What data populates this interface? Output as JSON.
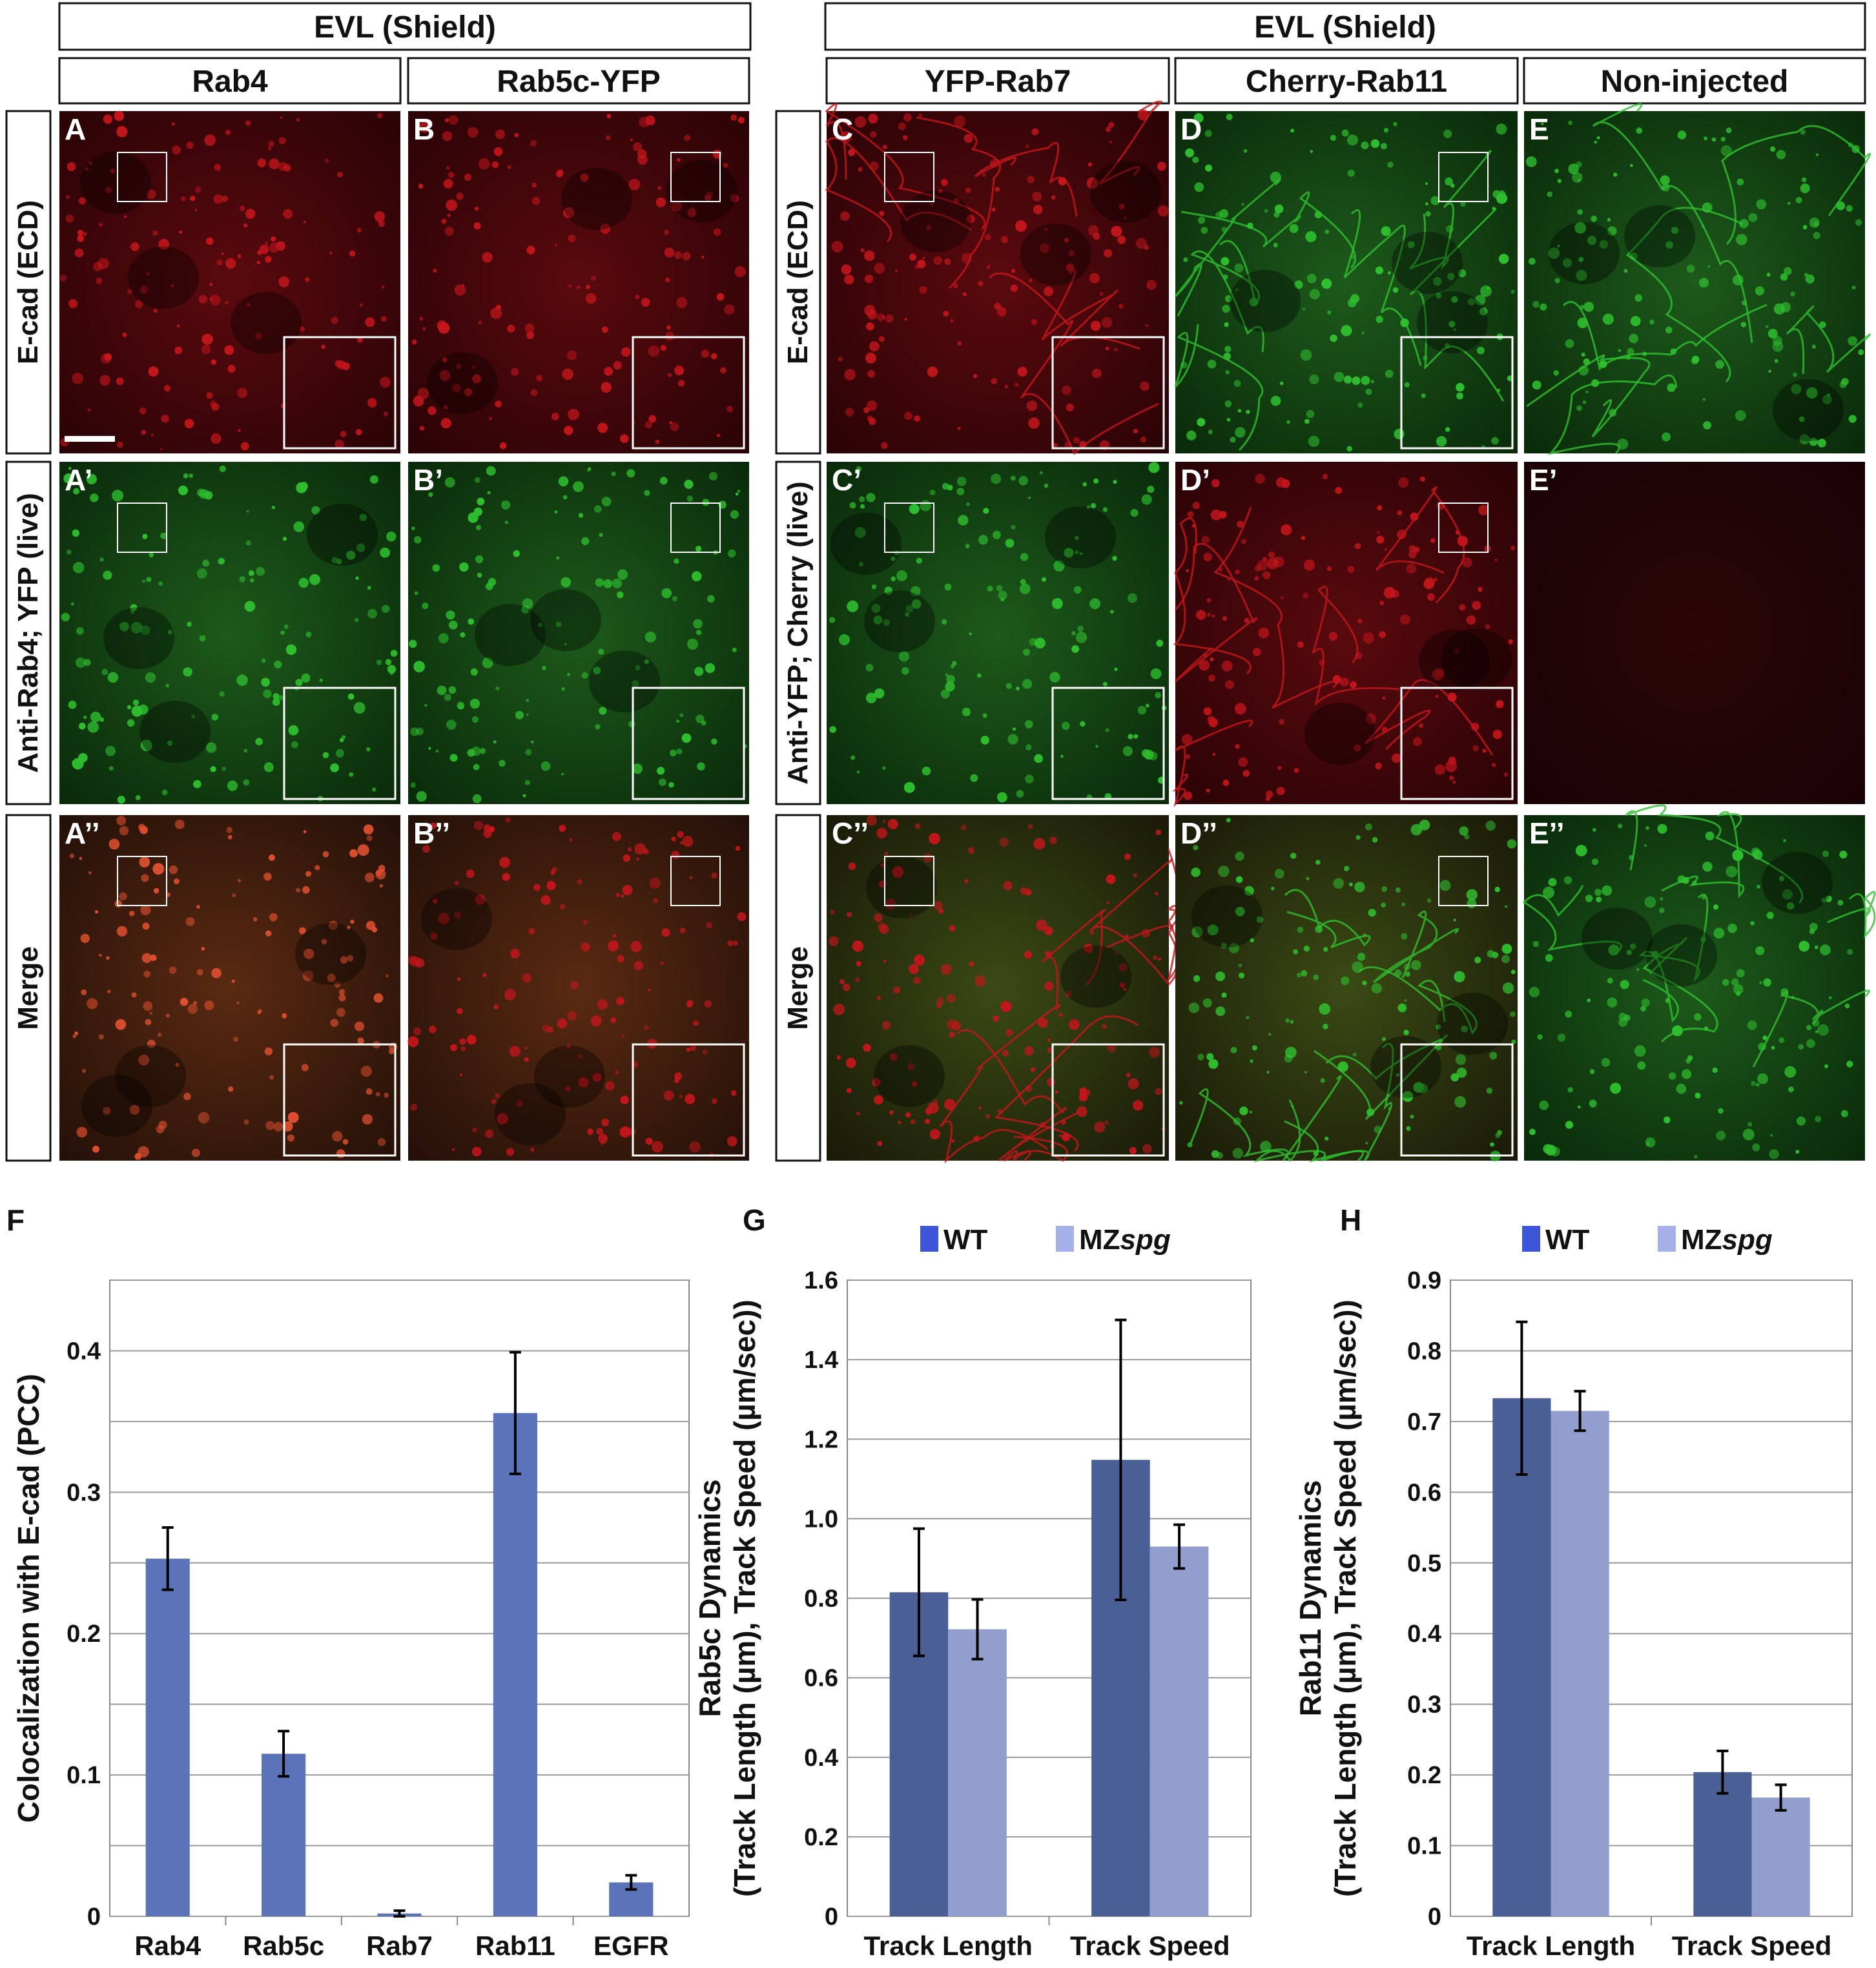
{
  "figure_headers": {
    "left_group": "EVL (Shield)",
    "right_group": "EVL (Shield)"
  },
  "columns": [
    "Rab4",
    "Rab5c-YFP",
    "YFP-Rab7",
    "Cherry-Rab11",
    "Non-injected"
  ],
  "row_labels_left": [
    "E-cad (ECD)",
    "Anti-Rab4; YFP (live)",
    "Merge"
  ],
  "row_labels_right": [
    "E-cad (ECD)",
    "Anti-YFP; Cherry (live)",
    "Merge"
  ],
  "panel_letters": {
    "row1": [
      "A",
      "B",
      "C",
      "D",
      "E"
    ],
    "row2": [
      "A’",
      "B’",
      "C’",
      "D’",
      "E’"
    ],
    "row3": [
      "A’’",
      "B’’",
      "C’’",
      "D’’",
      "E’’"
    ]
  },
  "micrograph_colors": {
    "red": "#c4161c",
    "green": "#2fbf2f",
    "dark_red": "#3a0508",
    "dark_green": "#0c3a0c"
  },
  "chart_letters": [
    "F",
    "G",
    "H"
  ],
  "chart_data": [
    {
      "type": "bar",
      "panel": "F",
      "categories": [
        "Rab4",
        "Rab5c",
        "Rab7",
        "Rab11",
        "EGFR"
      ],
      "values": [
        0.253,
        0.115,
        0.002,
        0.356,
        0.024
      ],
      "errors": [
        0.022,
        0.016,
        0.002,
        0.043,
        0.005
      ],
      "ylabel": "Colocalization with E-cad (PCC)",
      "ylim": [
        0,
        0.45
      ],
      "yticks": [
        0,
        0.1,
        0.2,
        0.3,
        0.4
      ],
      "ytick_labels": [
        "0",
        "0.1",
        "0.2",
        "0.3",
        "0.4"
      ],
      "grid": true,
      "colors": [
        "#5b73b8"
      ]
    },
    {
      "type": "bar",
      "panel": "G",
      "categories": [
        "Track Length",
        "Track Speed"
      ],
      "series": [
        {
          "name": "WT",
          "values": [
            0.815,
            1.148
          ],
          "errors": [
            0.16,
            0.352
          ]
        },
        {
          "name": "MZspg",
          "values": [
            0.722,
            0.93
          ],
          "errors": [
            0.075,
            0.055
          ]
        }
      ],
      "ylabel_line1": "Rab5c Dynamics",
      "ylabel_line2": "(Track Length (µm), Track Speed (µm/sec))",
      "ylim": [
        0,
        1.6
      ],
      "yticks": [
        0,
        0.2,
        0.4,
        0.6,
        0.8,
        1.0,
        1.2,
        1.4,
        1.6
      ],
      "ytick_labels": [
        "0",
        "0.2",
        "0.4",
        "0.6",
        "0.8",
        "1.0",
        "1.2",
        "1.4",
        "1.6"
      ],
      "grid": true,
      "legend_placement": "top",
      "legend_prefix_2": "MZ",
      "legend_italic_2": "spg",
      "colors": [
        "#4a5f96",
        "#929ece"
      ],
      "legend_colors": [
        "#3c55d9",
        "#a6b0e8"
      ]
    },
    {
      "type": "bar",
      "panel": "H",
      "categories": [
        "Track Length",
        "Track Speed"
      ],
      "series": [
        {
          "name": "WT",
          "values": [
            0.733,
            0.204
          ],
          "errors": [
            0.108,
            0.03
          ]
        },
        {
          "name": "MZspg",
          "values": [
            0.715,
            0.168
          ],
          "errors": [
            0.028,
            0.018
          ]
        }
      ],
      "ylabel_line1": "Rab11 Dynamics",
      "ylabel_line2": "(Track Length (µm), Track Speed (µm/sec))",
      "ylim": [
        0,
        0.9
      ],
      "yticks": [
        0,
        0.1,
        0.2,
        0.3,
        0.4,
        0.5,
        0.6,
        0.7,
        0.8,
        0.9
      ],
      "ytick_labels": [
        "0",
        "0.1",
        "0.2",
        "0.3",
        "0.4",
        "0.5",
        "0.6",
        "0.7",
        "0.8",
        "0.9"
      ],
      "grid": true,
      "legend_placement": "top",
      "legend_prefix_2": "MZ",
      "legend_italic_2": "spg",
      "colors": [
        "#4a5f96",
        "#929ece"
      ],
      "legend_colors": [
        "#3c55d9",
        "#a6b0e8"
      ]
    }
  ]
}
